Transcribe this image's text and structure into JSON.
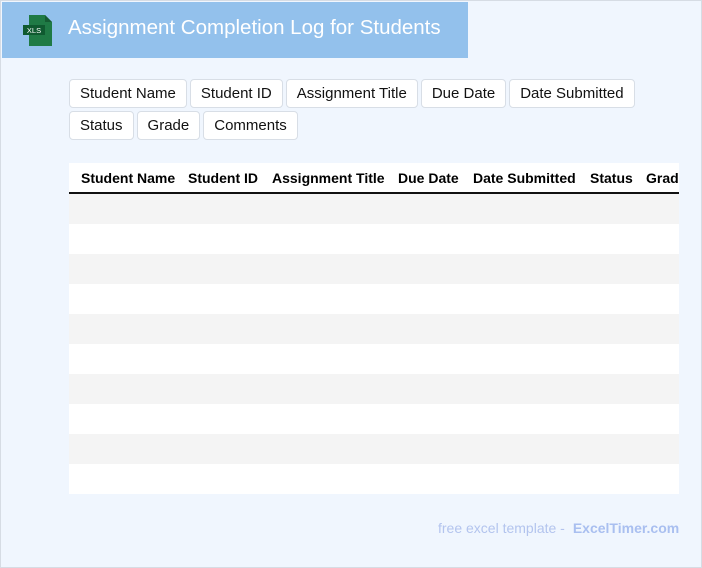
{
  "header": {
    "title": "Assignment Completion Log for Students",
    "logo_icon": "xls-file-icon",
    "logo_text": "XLS",
    "bar_color": "#93c1ec"
  },
  "field_chips": [
    "Student Name",
    "Student ID",
    "Assignment Title",
    "Due Date",
    "Date Submitted",
    "Status",
    "Grade",
    "Comments"
  ],
  "table": {
    "columns": [
      "Student Name",
      "Student ID",
      "Assignment Title",
      "Due Date",
      "Date Submitted",
      "Status",
      "Grade"
    ],
    "rows": [
      [],
      [],
      [],
      [],
      [],
      [],
      [],
      [],
      [],
      []
    ]
  },
  "footer": {
    "text": "free excel template -",
    "brand": "ExcelTimer.com"
  }
}
